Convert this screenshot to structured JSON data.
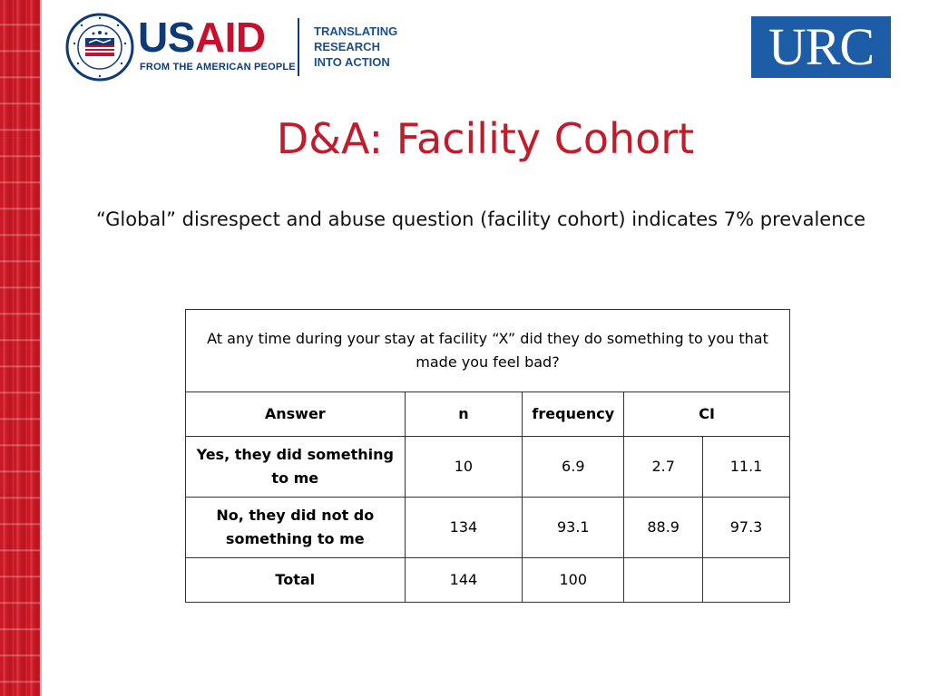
{
  "logos": {
    "usaid_word_blue": "US",
    "usaid_word_red": "AID",
    "usaid_tagline": "FROM THE AMERICAN PEOPLE",
    "seal_text": "UNITED STATES AGENCY INTERNATIONAL DEVELOPMENT",
    "tria_lines": [
      "TRANSLATING",
      "RESEARCH",
      "INTO ACTION"
    ],
    "urc": "URC"
  },
  "slide": {
    "title": "D&A: Facility Cohort",
    "subtitle": "“Global” disrespect and abuse question (facility cohort) indicates 7% prevalence"
  },
  "table": {
    "question": "At any time during your stay at facility “X” did they do something to you that made you feel bad?",
    "headers": {
      "answer": "Answer",
      "n": "n",
      "frequency": "frequency",
      "ci": "CI"
    },
    "rows": [
      {
        "answer": "Yes, they did something to me",
        "n": "10",
        "frequency": "6.9",
        "ci_low": "2.7",
        "ci_high": "11.1"
      },
      {
        "answer": "No, they did not do something to me",
        "n": "134",
        "frequency": "93.1",
        "ci_low": "88.9",
        "ci_high": "97.3"
      },
      {
        "answer": "Total",
        "n": "144",
        "frequency": "100",
        "ci_low": "",
        "ci_high": ""
      }
    ]
  },
  "colors": {
    "title_red": "#c21c2c",
    "usaid_blue": "#0e3a78",
    "urc_blue": "#1d5ca6",
    "stripe_red": "#d31f2b"
  }
}
